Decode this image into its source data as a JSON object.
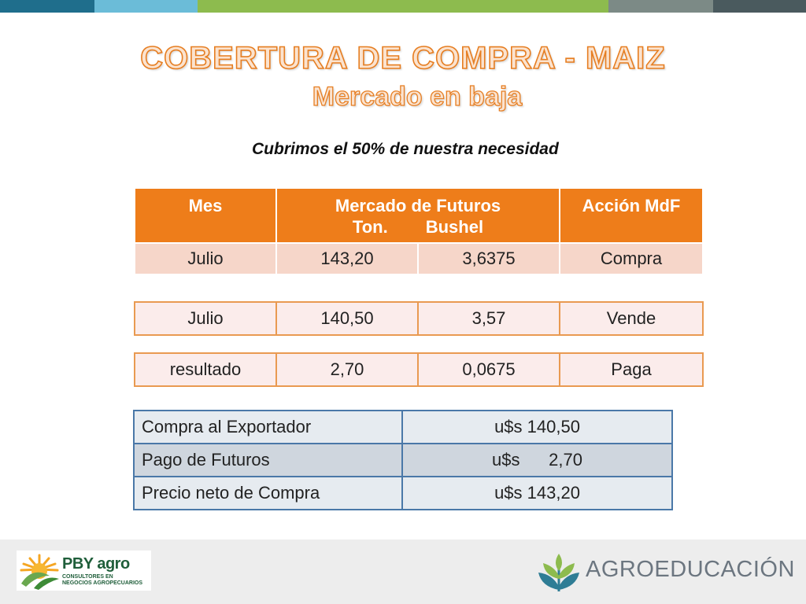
{
  "colors": {
    "topbar": [
      "#1f6e8c",
      "#6bbcd8",
      "#8dbb4e",
      "#7c8a86",
      "#4a5a5e"
    ],
    "accent": "#ee7d1a",
    "table_blue": "#4a78a8"
  },
  "slide": {
    "title": "COBERTURA DE COMPRA - MAIZ",
    "subtitle": "Mercado en baja",
    "intro": "Cubrimos el 50% de nuestra necesidad"
  },
  "futures_table": {
    "headers": {
      "month": "Mes",
      "market": "Mercado de Futuros",
      "ton": "Ton.",
      "bushel": "Bushel",
      "action": "Acción  MdF"
    },
    "rows": [
      {
        "mes": "Julio",
        "ton": "143,20",
        "bushel": "3,6375",
        "accion": "Compra"
      },
      {
        "mes": "Julio",
        "ton": "140,50",
        "bushel": "3,57",
        "accion": "Vende"
      },
      {
        "mes": "resultado",
        "ton": "2,70",
        "bushel": "0,0675",
        "accion": "Paga"
      }
    ]
  },
  "summary_table": {
    "rows": [
      {
        "label": "Compra al Exportador",
        "value": "u$s 140,50"
      },
      {
        "label": "Pago de Futuros",
        "value": "u$s      2,70"
      },
      {
        "label": "Precio neto de Compra",
        "value": "u$s 143,20"
      }
    ]
  },
  "footer": {
    "pby_name": "PBY agro",
    "pby_tag_line1": "CONSULTORES EN",
    "pby_tag_line2": "NEGOCIOS AGROPECUARIOS",
    "agro_brand": "AGROEDUCACIÓN",
    "agro_brand_part1": "AGRO",
    "agro_brand_part2": "EDUCACIÓN"
  }
}
